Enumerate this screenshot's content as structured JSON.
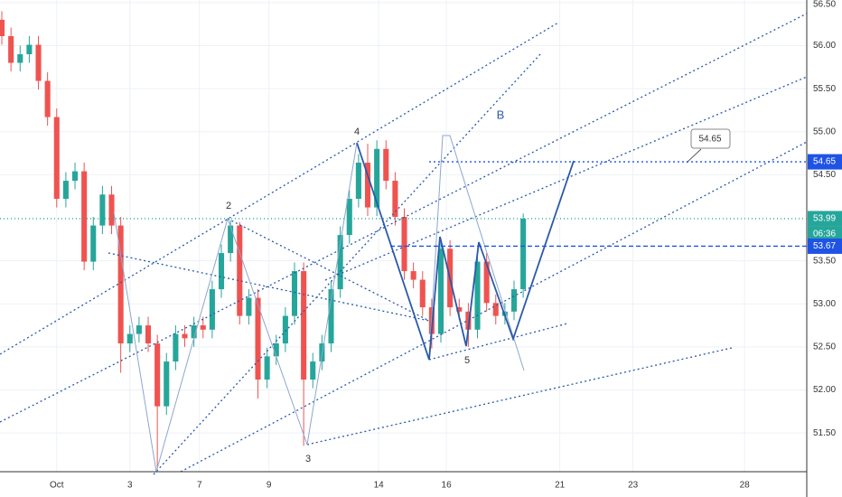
{
  "chart_data": {
    "type": "candlestick",
    "x": [
      -1.5,
      -1.25,
      -1,
      -0.75,
      -0.5,
      -0.25,
      0,
      0.25,
      0.5,
      0.75,
      1,
      1.25,
      1.5,
      1.75,
      2,
      2.25,
      2.5,
      2.75,
      3,
      3.25,
      3.5,
      3.75,
      4,
      4.25,
      4.5,
      4.75,
      5,
      5.25,
      5.5,
      5.75,
      6,
      6.25,
      6.5,
      6.75,
      7,
      7.25,
      7.5,
      7.75,
      8,
      8.25,
      8.5,
      8.75,
      9,
      9.25,
      9.5,
      9.75,
      10,
      10.25,
      10.5,
      10.75,
      11,
      11.25,
      11.5,
      11.75,
      12,
      12.25,
      12.5,
      12.75
    ],
    "open": [
      56.3,
      56.11,
      55.8,
      55.9,
      56.01,
      55.59,
      55.17,
      54.22,
      54.43,
      54.54,
      53.49,
      53.91,
      54.27,
      53.91,
      52.54,
      52.65,
      52.75,
      52.54,
      51.81,
      52.33,
      52.65,
      52.6,
      52.75,
      52.7,
      53.17,
      53.59,
      53.91,
      52.86,
      53.07,
      52.12,
      52.39,
      52.54,
      52.86,
      53.38,
      52.12,
      52.33,
      52.54,
      53.17,
      53.8,
      54.22,
      54.64,
      54.12,
      54.8,
      54.43,
      54.01,
      53.38,
      53.28,
      52.96,
      52.65,
      53.64,
      52.96,
      52.91,
      52.7,
      53.49,
      53.01,
      52.86,
      52.91,
      53.17
    ],
    "high": [
      56.4,
      56.21,
      56.0,
      56.11,
      56.11,
      55.69,
      55.27,
      54.53,
      54.64,
      54.64,
      54.01,
      54.37,
      54.37,
      54.01,
      52.75,
      52.85,
      52.85,
      52.64,
      52.43,
      52.75,
      52.75,
      52.85,
      52.85,
      53.27,
      53.69,
      53.97,
      53.95,
      53.17,
      53.17,
      52.49,
      52.64,
      52.96,
      53.48,
      53.48,
      52.43,
      52.64,
      53.27,
      53.9,
      54.32,
      54.74,
      54.86,
      54.9,
      54.9,
      54.53,
      54.11,
      53.48,
      53.38,
      53.06,
      53.74,
      53.74,
      53.06,
      53.01,
      53.59,
      53.59,
      53.11,
      53.01,
      53.27,
      54.05
    ],
    "low": [
      56.01,
      55.7,
      55.7,
      55.8,
      55.49,
      55.07,
      54.12,
      54.12,
      54.33,
      53.39,
      53.39,
      53.81,
      53.81,
      52.2,
      52.44,
      52.55,
      52.44,
      51.1,
      51.71,
      52.23,
      52.5,
      52.5,
      52.6,
      52.6,
      53.07,
      53.49,
      52.76,
      52.76,
      51.9,
      52.02,
      52.29,
      52.44,
      52.76,
      51.35,
      52.02,
      52.23,
      52.44,
      53.07,
      53.7,
      54.12,
      54.02,
      54.02,
      54.33,
      53.91,
      53.28,
      53.18,
      52.86,
      52.48,
      52.55,
      52.86,
      52.81,
      52.5,
      52.6,
      52.91,
      52.76,
      52.76,
      52.81,
      53.07
    ],
    "close": [
      56.11,
      55.8,
      55.9,
      56.01,
      55.59,
      55.17,
      54.22,
      54.43,
      54.54,
      53.49,
      53.91,
      54.27,
      53.91,
      52.54,
      52.65,
      52.75,
      52.54,
      51.81,
      52.33,
      52.65,
      52.6,
      52.75,
      52.7,
      53.17,
      53.59,
      53.91,
      52.86,
      53.07,
      52.12,
      52.39,
      52.54,
      52.86,
      53.38,
      52.12,
      52.33,
      52.54,
      53.17,
      53.8,
      54.22,
      54.64,
      54.12,
      54.8,
      54.43,
      54.01,
      53.38,
      53.28,
      52.96,
      52.65,
      53.64,
      52.96,
      52.91,
      52.7,
      53.49,
      53.01,
      52.86,
      52.91,
      53.17,
      53.99
    ],
    "up_color": "#26a69a",
    "down_color": "#ef5350",
    "xlim": [
      -1.55,
      20.5
    ],
    "xticks": [
      {
        "value": 0,
        "label": "Oct"
      },
      {
        "value": 2,
        "label": "3"
      },
      {
        "value": 3.9,
        "label": "7"
      },
      {
        "value": 5.8,
        "label": "9"
      },
      {
        "value": 8.8,
        "label": "14"
      },
      {
        "value": 10.65,
        "label": "16"
      },
      {
        "value": 13.75,
        "label": "21"
      },
      {
        "value": 15.75,
        "label": "23"
      },
      {
        "value": 18.8,
        "label": "28"
      }
    ],
    "ylim": [
      51.05,
      56.53
    ],
    "yticks": [
      {
        "value": 56.5,
        "label": "56.50"
      },
      {
        "value": 56,
        "label": "56.00"
      },
      {
        "value": 55.5,
        "label": "55.50"
      },
      {
        "value": 55,
        "label": "55.00"
      },
      {
        "value": 54.5,
        "label": "54.50"
      },
      {
        "value": 53.5,
        "label": "53.50"
      },
      {
        "value": 53,
        "label": "53.00"
      },
      {
        "value": 52.5,
        "label": "52.50"
      },
      {
        "value": 52,
        "label": "52.00"
      },
      {
        "value": 51.5,
        "label": "51.50"
      }
    ],
    "grid": true,
    "price_lines": [
      {
        "value": 54.65,
        "color": "#1e53e5"
      },
      {
        "value": 53.99,
        "color": "#26a69a"
      },
      {
        "value": 53.67,
        "color": "#1e53e5"
      }
    ],
    "countdown": "06:36",
    "wave_labels": [
      "2",
      "3",
      "4",
      "5"
    ],
    "pattern_label": "B",
    "callout": "54.65"
  }
}
